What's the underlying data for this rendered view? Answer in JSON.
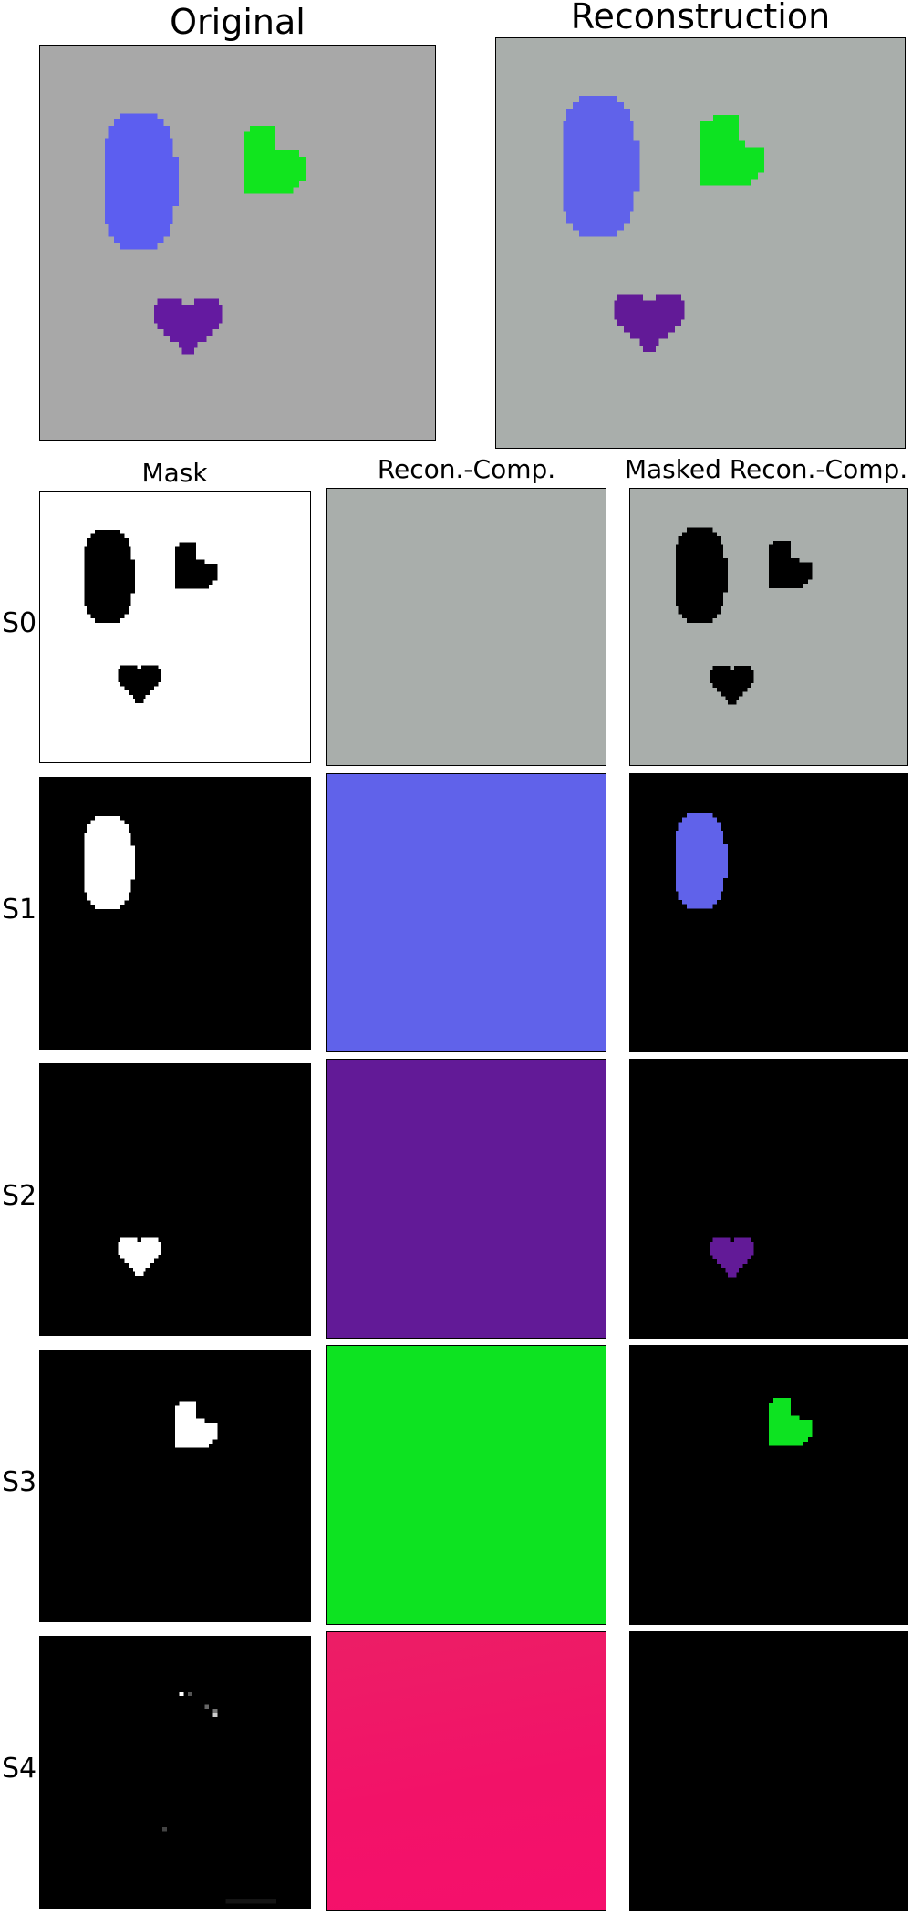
{
  "titles": {
    "original": "Original",
    "reconstruction": "Reconstruction",
    "mask": "Mask",
    "recon_comp": "Recon.-Comp.",
    "masked_recon_comp": "Masked Recon.-Comp."
  },
  "rows": [
    {
      "label": "S0",
      "mask": "inverse",
      "component_color": "#a9aeab",
      "masked": "background"
    },
    {
      "label": "S1",
      "mask": "ellipse",
      "component_color": "#6062ea",
      "masked": "ellipse"
    },
    {
      "label": "S2",
      "mask": "purple-heart",
      "component_color": "#621a97",
      "masked": "purple-heart"
    },
    {
      "label": "S3",
      "mask": "green-heart",
      "component_color": "#0de321",
      "masked": "green-heart"
    },
    {
      "label": "S4",
      "mask": "noise",
      "component_color": "#f21268",
      "masked": "none"
    }
  ],
  "colors": {
    "original_background": "#a8a8a8",
    "reconstruction_background": "#a9aeab",
    "ellipse": "#5c5ef0",
    "green_heart": "#11e51e",
    "purple_heart": "#641aa0",
    "mask_on": "#ffffff",
    "mask_off": "#000000"
  }
}
